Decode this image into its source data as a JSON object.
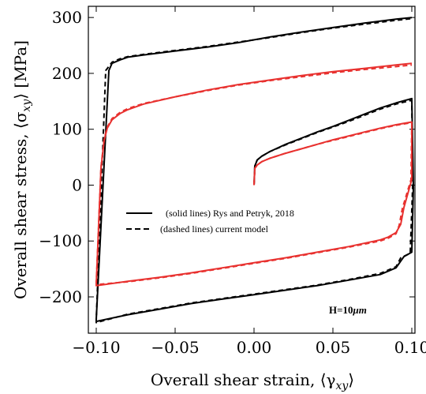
{
  "chart_data": {
    "type": "line",
    "xlabel": "Overall shear strain, ⟨γ",
    "xlabel_sub": "xy",
    "xlabel_end": "⟩",
    "ylabel": "Overall shear stress, ⟨σ",
    "ylabel_sub": "xy",
    "ylabel_end": "⟩ [MPa]",
    "xlim": [
      -0.105,
      0.102
    ],
    "ylim": [
      -265,
      320
    ],
    "x_ticks": [
      -0.1,
      -0.05,
      0.0,
      0.05,
      0.1
    ],
    "x_tick_labels": [
      "−0.10",
      "−0.05",
      "0.00",
      "0.05",
      "0.10"
    ],
    "y_ticks": [
      -200,
      -100,
      0,
      100,
      200,
      300
    ],
    "y_tick_labels": [
      "−200",
      "−100",
      "0",
      "100",
      "200",
      "300"
    ],
    "annotation": "H=10",
    "annotation_unit": "μm",
    "legend": {
      "placement": "center-left",
      "entries": [
        {
          "label": "(solid lines) Rys and Petryk, 2018",
          "style": "solid"
        },
        {
          "label": "(dashed lines) current model",
          "style": "dashed"
        }
      ]
    },
    "colors": {
      "black": "#000000",
      "red": "#e8312f"
    },
    "series": [
      {
        "color": "black",
        "style": "solid",
        "points": [
          [
            0,
            0
          ],
          [
            0.0005,
            34
          ],
          [
            0.002,
            45
          ],
          [
            0.005,
            52
          ],
          [
            0.01,
            60
          ],
          [
            0.02,
            73
          ],
          [
            0.03,
            84
          ],
          [
            0.04,
            95
          ],
          [
            0.05,
            105
          ],
          [
            0.06,
            116
          ],
          [
            0.07,
            127
          ],
          [
            0.08,
            138
          ],
          [
            0.09,
            147
          ],
          [
            0.1,
            155
          ],
          [
            0.101,
            -5
          ],
          [
            0.1,
            -120
          ],
          [
            0.095,
            -128
          ],
          [
            0.092,
            -140
          ],
          [
            0.09,
            -148
          ],
          [
            0.08,
            -160
          ],
          [
            0.06,
            -170
          ],
          [
            0.04,
            -180
          ],
          [
            0.02,
            -188
          ],
          [
            0,
            -196
          ],
          [
            -0.02,
            -204
          ],
          [
            -0.04,
            -212
          ],
          [
            -0.06,
            -222
          ],
          [
            -0.08,
            -232
          ],
          [
            -0.1,
            -244
          ],
          [
            -0.1,
            -240
          ],
          [
            -0.092,
            205
          ],
          [
            -0.09,
            218
          ],
          [
            -0.085,
            224
          ],
          [
            -0.08,
            229
          ],
          [
            -0.07,
            233
          ],
          [
            -0.05,
            240
          ],
          [
            -0.03,
            247
          ],
          [
            -0.01,
            255
          ],
          [
            0.01,
            265
          ],
          [
            0.03,
            274
          ],
          [
            0.05,
            282
          ],
          [
            0.07,
            290
          ],
          [
            0.09,
            297
          ],
          [
            0.1,
            300
          ]
        ]
      },
      {
        "color": "black",
        "style": "dashed",
        "points": [
          [
            0,
            0
          ],
          [
            0.0005,
            34
          ],
          [
            0.002,
            45
          ],
          [
            0.005,
            52
          ],
          [
            0.01,
            60
          ],
          [
            0.02,
            72
          ],
          [
            0.03,
            83
          ],
          [
            0.04,
            94
          ],
          [
            0.05,
            104
          ],
          [
            0.06,
            114
          ],
          [
            0.07,
            125
          ],
          [
            0.08,
            136
          ],
          [
            0.09,
            145
          ],
          [
            0.1,
            152
          ],
          [
            0.1005,
            -5
          ],
          [
            0.099,
            -122
          ],
          [
            0.093,
            -130
          ],
          [
            0.09,
            -146
          ],
          [
            0.08,
            -158
          ],
          [
            0.06,
            -169
          ],
          [
            0.04,
            -179
          ],
          [
            0.02,
            -187
          ],
          [
            0,
            -195
          ],
          [
            -0.02,
            -203
          ],
          [
            -0.04,
            -211
          ],
          [
            -0.06,
            -221
          ],
          [
            -0.08,
            -231
          ],
          [
            -0.1,
            -246
          ],
          [
            -0.1,
            -242
          ],
          [
            -0.094,
            205
          ],
          [
            -0.09,
            220
          ],
          [
            -0.085,
            226
          ],
          [
            -0.08,
            230
          ],
          [
            -0.07,
            234
          ],
          [
            -0.05,
            241
          ],
          [
            -0.03,
            248
          ],
          [
            -0.01,
            256
          ],
          [
            0.01,
            264
          ],
          [
            0.03,
            273
          ],
          [
            0.05,
            281
          ],
          [
            0.07,
            288
          ],
          [
            0.09,
            295
          ],
          [
            0.1,
            298
          ]
        ]
      },
      {
        "color": "red",
        "style": "solid",
        "points": [
          [
            0,
            0
          ],
          [
            0.0005,
            30
          ],
          [
            0.002,
            36
          ],
          [
            0.005,
            42
          ],
          [
            0.01,
            48
          ],
          [
            0.02,
            57
          ],
          [
            0.03,
            65
          ],
          [
            0.04,
            73
          ],
          [
            0.05,
            81
          ],
          [
            0.06,
            88
          ],
          [
            0.07,
            95
          ],
          [
            0.08,
            102
          ],
          [
            0.09,
            108
          ],
          [
            0.1,
            113
          ],
          [
            0.1,
            10
          ],
          [
            0.095,
            -40
          ],
          [
            0.093,
            -70
          ],
          [
            0.09,
            -85
          ],
          [
            0.085,
            -93
          ],
          [
            0.08,
            -98
          ],
          [
            0.06,
            -110
          ],
          [
            0.04,
            -120
          ],
          [
            0.02,
            -130
          ],
          [
            0,
            -139
          ],
          [
            -0.02,
            -148
          ],
          [
            -0.04,
            -157
          ],
          [
            -0.06,
            -165
          ],
          [
            -0.08,
            -172
          ],
          [
            -0.1,
            -180
          ],
          [
            -0.1,
            -178
          ],
          [
            -0.097,
            30
          ],
          [
            -0.095,
            80
          ],
          [
            -0.093,
            102
          ],
          [
            -0.09,
            117
          ],
          [
            -0.085,
            128
          ],
          [
            -0.08,
            135
          ],
          [
            -0.07,
            145
          ],
          [
            -0.05,
            158
          ],
          [
            -0.03,
            170
          ],
          [
            -0.01,
            180
          ],
          [
            0.01,
            188
          ],
          [
            0.03,
            196
          ],
          [
            0.05,
            203
          ],
          [
            0.07,
            209
          ],
          [
            0.09,
            215
          ],
          [
            0.1,
            218
          ]
        ]
      },
      {
        "color": "red",
        "style": "dashed",
        "points": [
          [
            0,
            0
          ],
          [
            0.0005,
            30
          ],
          [
            0.002,
            36
          ],
          [
            0.005,
            42
          ],
          [
            0.01,
            48
          ],
          [
            0.02,
            57
          ],
          [
            0.03,
            65
          ],
          [
            0.04,
            73
          ],
          [
            0.05,
            80
          ],
          [
            0.06,
            87
          ],
          [
            0.07,
            94
          ],
          [
            0.08,
            101
          ],
          [
            0.09,
            107
          ],
          [
            0.1,
            112
          ],
          [
            0.0995,
            10
          ],
          [
            0.094,
            -42
          ],
          [
            0.092,
            -72
          ],
          [
            0.09,
            -87
          ],
          [
            0.085,
            -95
          ],
          [
            0.08,
            -100
          ],
          [
            0.06,
            -111
          ],
          [
            0.04,
            -121
          ],
          [
            0.02,
            -131
          ],
          [
            0,
            -140
          ],
          [
            -0.02,
            -149
          ],
          [
            -0.04,
            -158
          ],
          [
            -0.06,
            -166
          ],
          [
            -0.08,
            -173
          ],
          [
            -0.1,
            -178
          ],
          [
            -0.1,
            -176
          ],
          [
            -0.097,
            32
          ],
          [
            -0.095,
            82
          ],
          [
            -0.093,
            104
          ],
          [
            -0.09,
            119
          ],
          [
            -0.085,
            130
          ],
          [
            -0.08,
            137
          ],
          [
            -0.07,
            146
          ],
          [
            -0.05,
            158
          ],
          [
            -0.03,
            169
          ],
          [
            -0.01,
            179
          ],
          [
            0.01,
            187
          ],
          [
            0.03,
            194
          ],
          [
            0.05,
            201
          ],
          [
            0.07,
            207
          ],
          [
            0.09,
            212
          ],
          [
            0.1,
            215
          ]
        ]
      }
    ]
  }
}
